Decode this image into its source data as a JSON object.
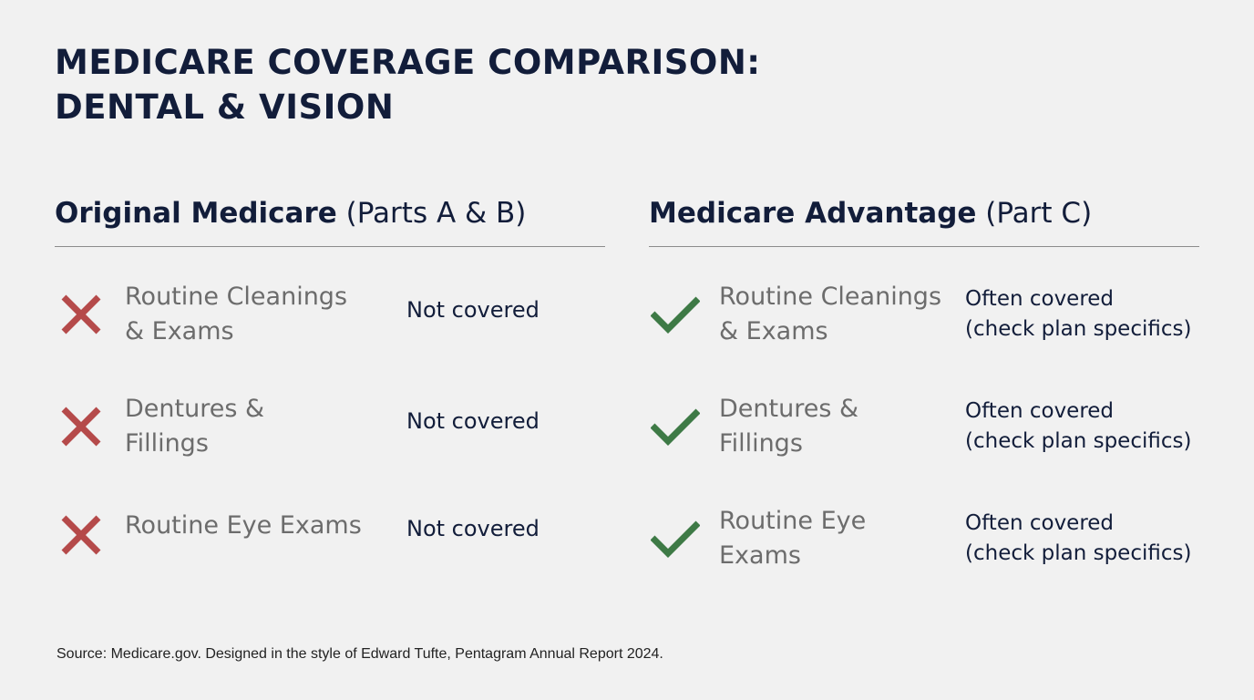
{
  "title": {
    "line1": "MEDICARE COVERAGE COMPARISON:",
    "line2": "DENTAL & VISION"
  },
  "colors": {
    "background": "#f1f1f1",
    "title": "#121d3a",
    "not_covered_icon": "#b54a4a",
    "covered_icon": "#3e7a46",
    "item_label": "#6c6c6c"
  },
  "original": {
    "heading_bold": "Original Medicare",
    "heading_normal": "(Parts A & B)",
    "icon": "x-mark-icon",
    "rows": [
      {
        "label": "Routine Cleanings\n& Exams",
        "status": "Not covered"
      },
      {
        "label": "Dentures &\nFillings",
        "status": "Not covered"
      },
      {
        "label": "Routine Eye Exams",
        "status": "Not covered"
      }
    ]
  },
  "advantage": {
    "heading_bold": "Medicare Advantage",
    "heading_normal": "(Part C)",
    "icon": "check-mark-icon",
    "rows": [
      {
        "label": "Routine Cleanings\n& Exams",
        "status": "Often covered\n(check plan specifics)"
      },
      {
        "label": "Dentures &\nFillings",
        "status": "Often covered\n(check plan specifics)"
      },
      {
        "label": "Routine Eye\nExams",
        "status": "Often covered\n(check plan specifics)"
      }
    ]
  },
  "source": "Source: Medicare.gov. Designed in the style of Edward Tufte, Pentagram Annual Report 2024."
}
